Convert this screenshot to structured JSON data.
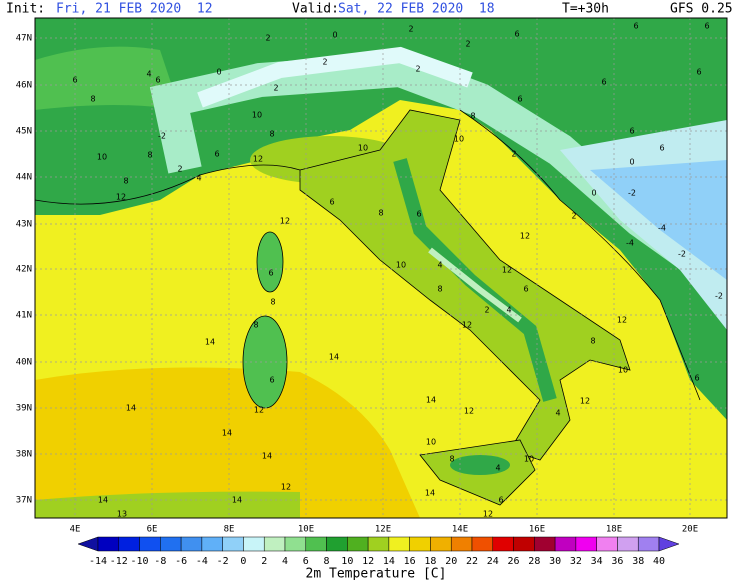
{
  "header": {
    "init_label": "Init:",
    "init_time": "Fri, 21 FEB 2020  12",
    "valid_label": "Valid:",
    "valid_time": "Sat, 22 FEB 2020  18",
    "forecast_hour": "T=+30h",
    "model": "GFS 0.25"
  },
  "map": {
    "lat_labels": [
      "47N",
      "46N",
      "45N",
      "44N",
      "43N",
      "42N",
      "41N",
      "40N",
      "39N",
      "38N",
      "37N"
    ],
    "lon_labels": [
      "4E",
      "6E",
      "8E",
      "10E",
      "12E",
      "14E",
      "16E",
      "18E",
      "20E"
    ],
    "value_labels": [
      "2",
      "0",
      "2",
      "2",
      "6",
      "6",
      "6",
      "6",
      "0",
      "4",
      "6",
      "8",
      "2",
      "2",
      "2",
      "6",
      "6",
      "6",
      "-2",
      "10",
      "8",
      "10",
      "2",
      "6",
      "8",
      "10",
      "10",
      "2",
      "8",
      "6",
      "6",
      "12",
      "8",
      "4",
      "12",
      "0",
      "-2",
      "0",
      "6",
      "8",
      "6",
      "2",
      "12",
      "12",
      "-4",
      "-2",
      "-4",
      "10",
      "4",
      "12",
      "6",
      "8",
      "6",
      "8",
      "2",
      "4",
      "-2",
      "12",
      "8",
      "12",
      "14",
      "14",
      "8",
      "10",
      "6",
      "6",
      "14",
      "12",
      "14",
      "12",
      "12",
      "4",
      "14",
      "14",
      "10",
      "8",
      "4",
      "10",
      "14",
      "14",
      "12",
      "14",
      "6",
      "13",
      "12"
    ]
  },
  "legend": {
    "title": "2m Temperature [C]",
    "labels": [
      "-14",
      "-12",
      "-10",
      "-8",
      "-6",
      "-4",
      "-2",
      "0",
      "2",
      "4",
      "6",
      "8",
      "10",
      "12",
      "14",
      "16",
      "18",
      "20",
      "22",
      "24",
      "26",
      "28",
      "30",
      "32",
      "34",
      "36",
      "38",
      "40"
    ],
    "colors": [
      "#1010a0",
      "#0000c0",
      "#0020e0",
      "#1050f0",
      "#2070f0",
      "#4090f0",
      "#60b0f8",
      "#90d0f8",
      "#c8f4f8",
      "#c0f0c0",
      "#90e090",
      "#50c050",
      "#20a030",
      "#50b020",
      "#a0d020",
      "#f0f020",
      "#f0d000",
      "#f0b000",
      "#f08000",
      "#f05000",
      "#e00000",
      "#c00000",
      "#a00030",
      "#c000c0",
      "#f000f0",
      "#f080f0",
      "#d0a0f0",
      "#a080f0",
      "#6040e0"
    ]
  }
}
